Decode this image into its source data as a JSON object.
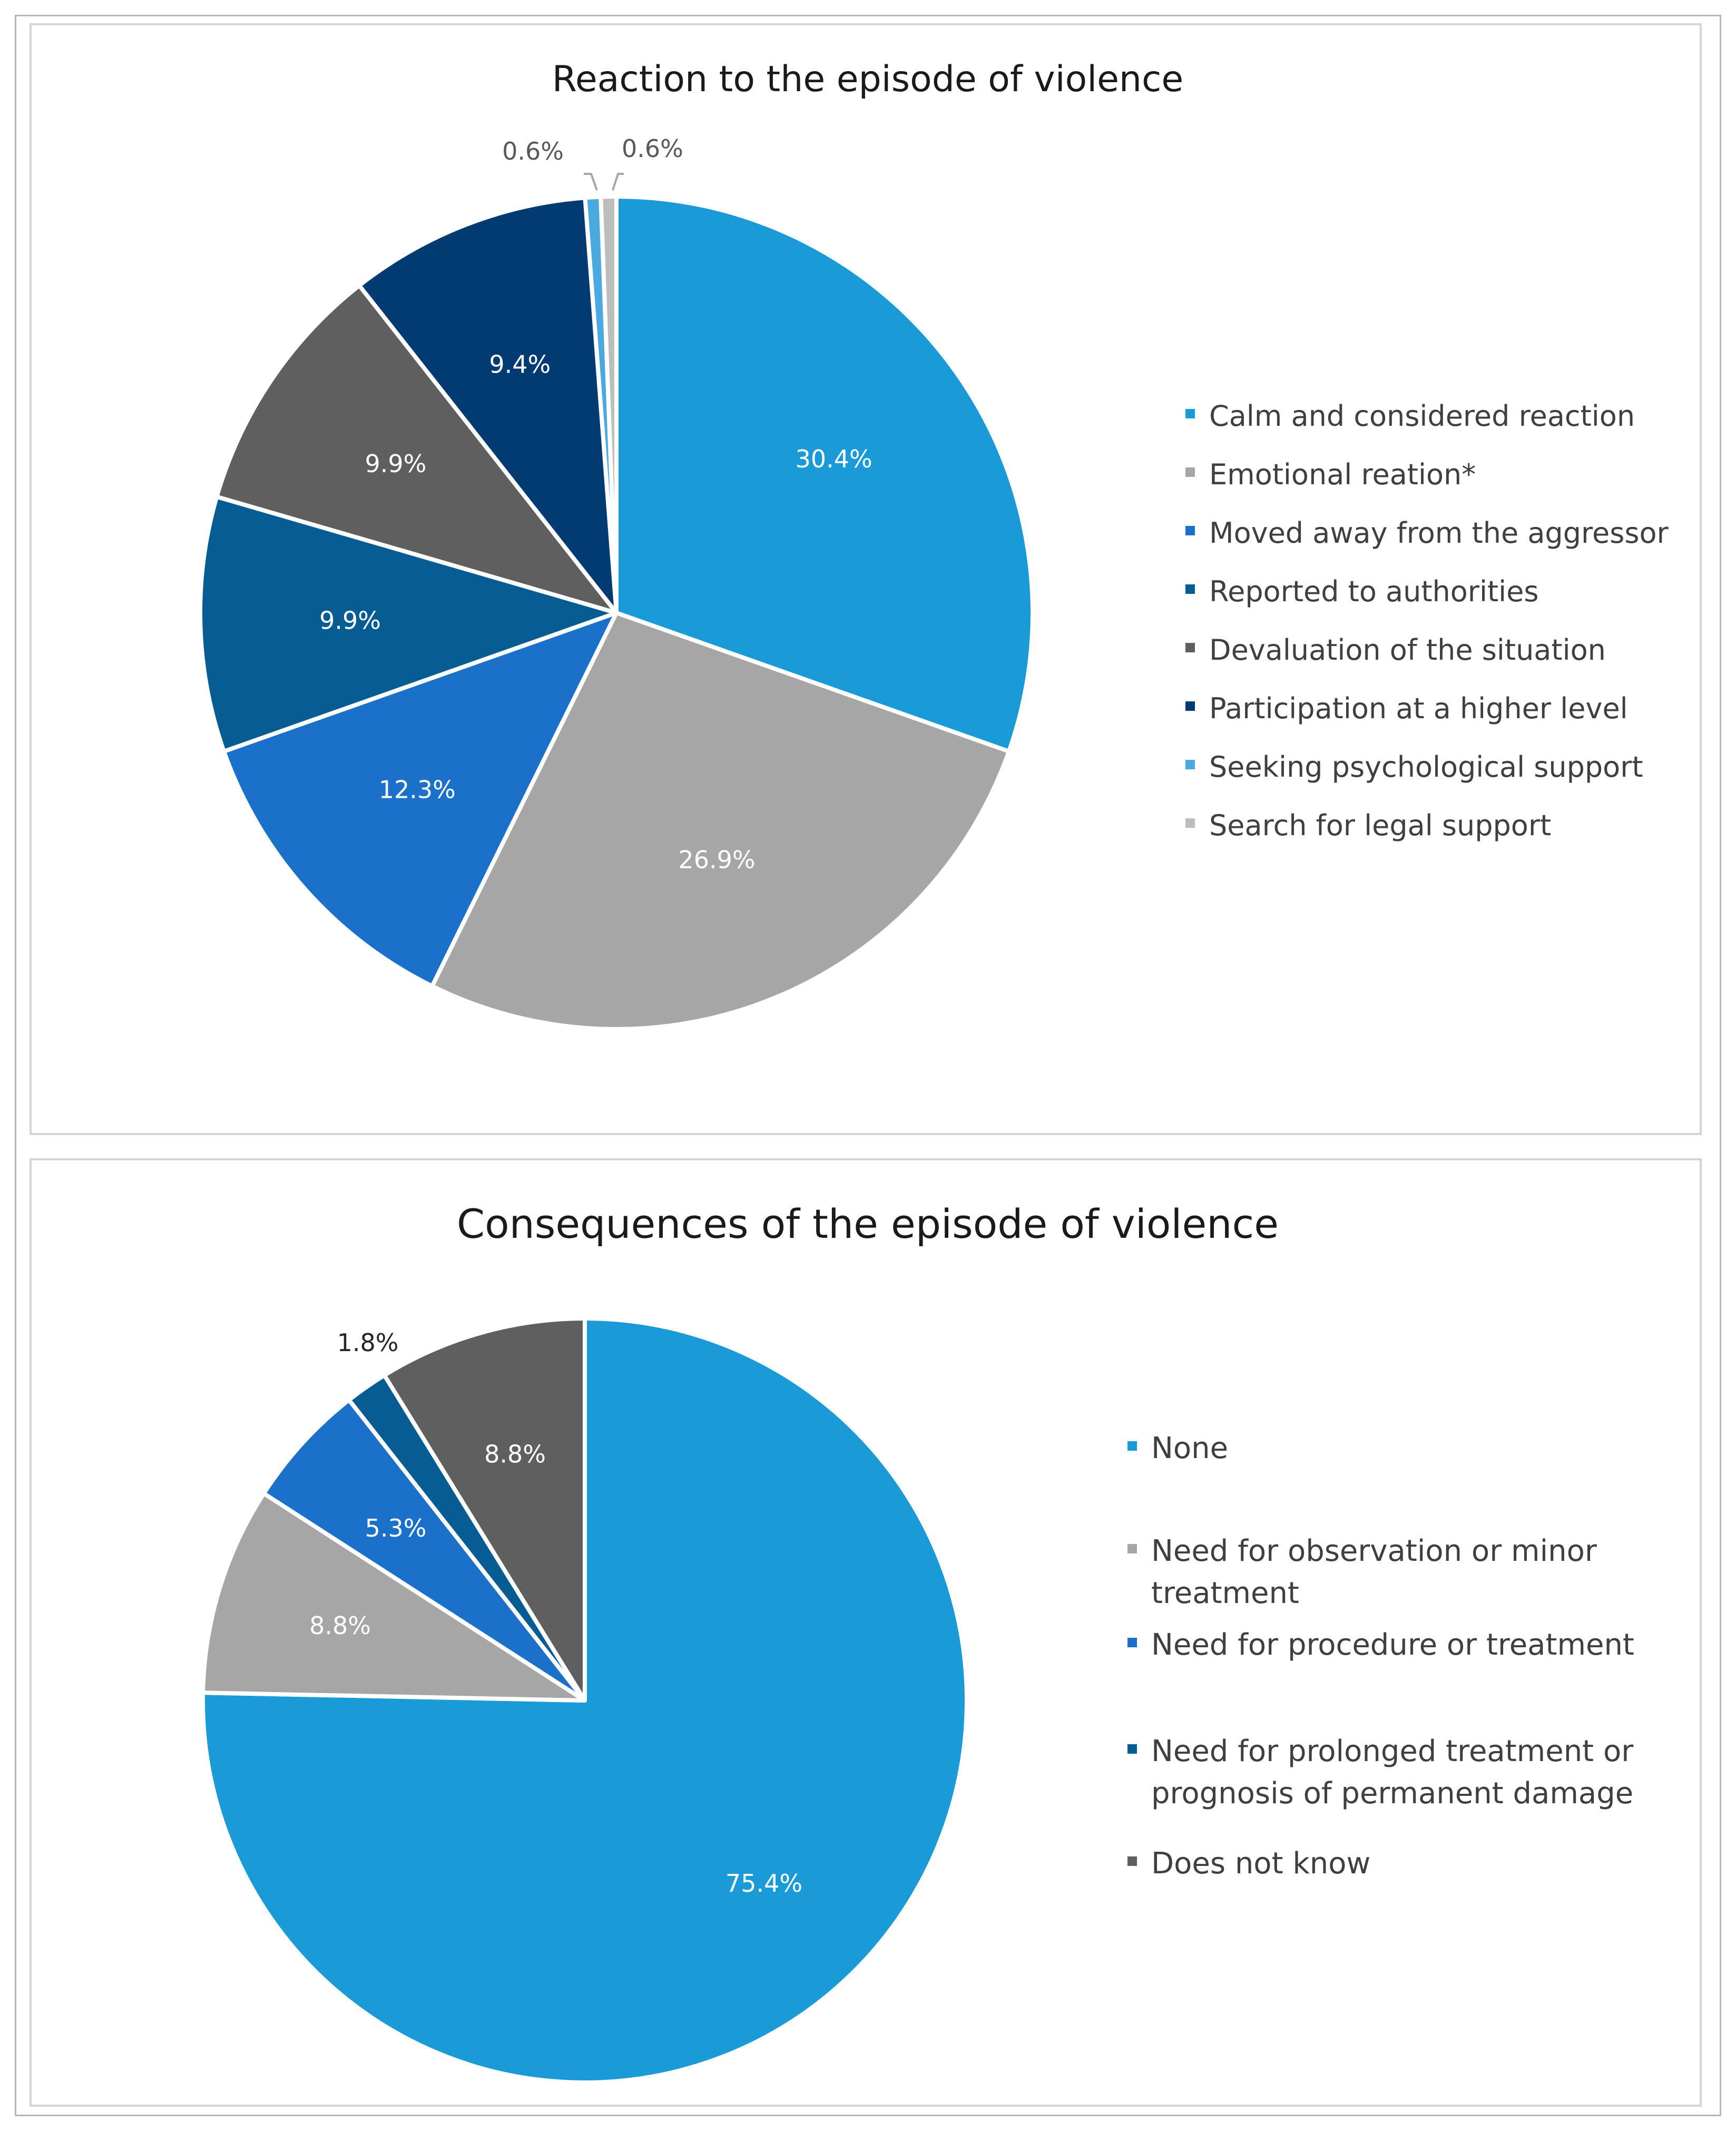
{
  "chart_data": [
    {
      "type": "pie",
      "title": "Reaction to the episode of violence",
      "legend_position": "right",
      "categories": [
        "Calm and considered reaction",
        "Emotional reation*",
        "Moved away from the aggressor",
        "Reported to authorities",
        "Devaluation of the situation",
        "Participation at a higher level",
        "Seeking psychological support",
        "Search for legal support"
      ],
      "values": [
        30.4,
        26.9,
        12.3,
        9.9,
        9.9,
        9.4,
        0.6,
        0.6
      ],
      "labels": [
        "30.4%",
        "26.9%",
        "12.3%",
        "9.9%",
        "9.9%",
        "9.4%",
        "0.6%",
        "0.6%"
      ],
      "colors": [
        "#1a9ad6",
        "#a6a6a6",
        "#1b70c9",
        "#075c93",
        "#5f5f5f",
        "#023b72",
        "#4aa9df",
        "#bdbdbd"
      ],
      "label_colors": [
        "#ffffff",
        "#ffffff",
        "#ffffff",
        "#ffffff",
        "#ffffff",
        "#ffffff",
        "#595959",
        "#595959"
      ],
      "outside_labels": [
        false,
        false,
        false,
        false,
        false,
        false,
        true,
        true
      ]
    },
    {
      "type": "pie",
      "title": "Consequences  of the episode of violence",
      "legend_position": "right",
      "categories": [
        "None",
        "Need for observation or minor treatment",
        "Need for procedure or treatment",
        "Need for prolonged treatment or prognosis of permanent damage",
        "Does not know"
      ],
      "legend_lines": [
        [
          "None"
        ],
        [
          "Need for observation or minor",
          "treatment"
        ],
        [
          "Need for procedure or treatment"
        ],
        [
          "Need for prolonged treatment or",
          "prognosis of permanent damage"
        ],
        [
          "Does not know"
        ]
      ],
      "values": [
        75.4,
        8.8,
        5.3,
        1.8,
        8.8
      ],
      "labels": [
        "75.4%",
        "8.8%",
        "5.3%",
        "1.8%",
        "8.8%"
      ],
      "colors": [
        "#1a9ad6",
        "#a6a6a6",
        "#1b70c9",
        "#075c93",
        "#5f5f5f"
      ],
      "label_colors": [
        "#ffffff",
        "#ffffff",
        "#ffffff",
        "#262626",
        "#ffffff"
      ],
      "outside_labels": [
        false,
        false,
        false,
        true,
        false
      ]
    }
  ]
}
